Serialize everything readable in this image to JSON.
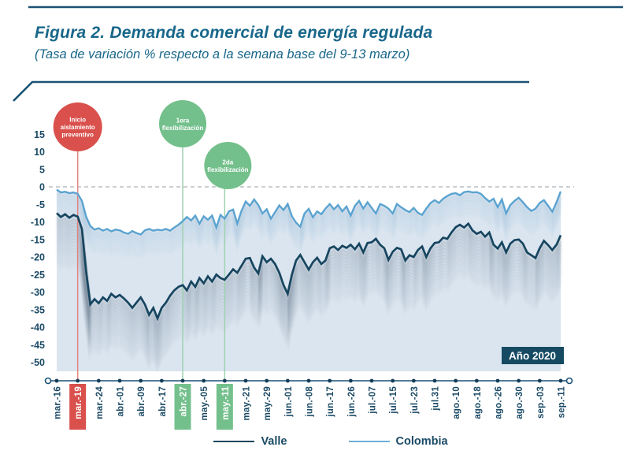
{
  "header": {
    "title": "Figura 2. Demanda comercial de energía regulada",
    "subtitle": "(Tasa de variación % respecto a la semana base del 9-13 marzo)"
  },
  "badge": {
    "label": "Año 2020"
  },
  "legend": [
    {
      "name": "Valle",
      "color": "#17455f"
    },
    {
      "name": "Colombia",
      "color": "#6fb0d8"
    }
  ],
  "annotations": [
    {
      "lines": [
        "Inicio",
        "aislamiento",
        "preventivo"
      ],
      "category": "mar.-19",
      "color": "#d9504c",
      "stem_color": "#e2847f"
    },
    {
      "lines": [
        "1era",
        "flexibilización"
      ],
      "category": "abr.-27",
      "color": "#74c08c",
      "stem_color": "#9ed2b0"
    },
    {
      "lines": [
        "2da",
        "flexibilización"
      ],
      "category": "may.-11",
      "color": "#74c08c",
      "stem_color": "#9ed2b0"
    }
  ],
  "colors": {
    "frame": "#1a5276",
    "title_text": "#19678a",
    "tick_text": "#1b4a66",
    "axis": "#1a5276",
    "dot": "#143d57",
    "zero_line": "#aab2b8",
    "red": "#d9504c",
    "green": "#74c08c",
    "valle": "#17455f",
    "colombia": "#5ba3d0",
    "area_fill": "#d7e3ef",
    "valle_shadow": "#54687a",
    "colombia_shadow": "#8fb6d4",
    "badge_bg": "#164a63",
    "badge_text": "#ffffff"
  },
  "chart_data": {
    "type": "line",
    "title": "Figura 2. Demanda comercial de energía regulada",
    "subtitle": "(Tasa de variación % respecto a la semana base del 9-13 marzo)",
    "xlabel": "",
    "ylabel": "Tasa de variación %",
    "ylim": [
      -50,
      15
    ],
    "grid": false,
    "zero_line_dashed": true,
    "legend_position": "bottom",
    "y_ticks": [
      15,
      10,
      5,
      0,
      -5,
      -10,
      -15,
      -20,
      -25,
      -30,
      -35,
      -40,
      -45,
      -50
    ],
    "x_tick_labels": [
      {
        "label": "mar.-16",
        "hl": ""
      },
      {
        "label": "mar.-19",
        "hl": "red"
      },
      {
        "label": "mar.-24",
        "hl": ""
      },
      {
        "label": "abr.-01",
        "hl": ""
      },
      {
        "label": "abr.-09",
        "hl": ""
      },
      {
        "label": "abr.-17",
        "hl": ""
      },
      {
        "label": "abr.-27",
        "hl": "green"
      },
      {
        "label": "may.-05",
        "hl": ""
      },
      {
        "label": "may.-11",
        "hl": "green"
      },
      {
        "label": "may.-21",
        "hl": ""
      },
      {
        "label": "may.-29",
        "hl": ""
      },
      {
        "label": "jun.-01",
        "hl": ""
      },
      {
        "label": "jun.-08",
        "hl": ""
      },
      {
        "label": "jun.-17",
        "hl": ""
      },
      {
        "label": "jun.-26",
        "hl": ""
      },
      {
        "label": "jul.-07",
        "hl": ""
      },
      {
        "label": "jul.-15",
        "hl": ""
      },
      {
        "label": "jul.-23",
        "hl": ""
      },
      {
        "label": "jul.31",
        "hl": ""
      },
      {
        "label": "ago.-10",
        "hl": ""
      },
      {
        "label": "ago.-18",
        "hl": ""
      },
      {
        "label": "ago.-26",
        "hl": ""
      },
      {
        "label": "ago.-30",
        "hl": ""
      },
      {
        "label": "sep.-03",
        "hl": ""
      },
      {
        "label": "sep.-11",
        "hl": ""
      }
    ],
    "series": [
      {
        "name": "Valle",
        "color": "#17455f",
        "values": [
          -7.5,
          -8.6,
          -7.8,
          -8.8,
          -8.0,
          -8.5,
          -12.0,
          -24.0,
          -33.5,
          -32.0,
          -33.2,
          -31.5,
          -32.5,
          -30.5,
          -31.5,
          -30.8,
          -31.8,
          -33.0,
          -34.5,
          -33.0,
          -31.5,
          -33.5,
          -36.5,
          -34.5,
          -37.5,
          -34.5,
          -33.0,
          -31.0,
          -29.5,
          -28.5,
          -28.0,
          -29.5,
          -27.0,
          -28.5,
          -26.0,
          -27.5,
          -25.5,
          -27.0,
          -25.0,
          -26.0,
          -26.5,
          -25.0,
          -23.5,
          -24.5,
          -22.5,
          -20.5,
          -20.3,
          -23.0,
          -24.7,
          -19.8,
          -21.5,
          -20.5,
          -22.0,
          -24.5,
          -28.0,
          -30.5,
          -25.0,
          -21.0,
          -19.4,
          -21.5,
          -23.6,
          -21.5,
          -20.2,
          -22.0,
          -21.0,
          -17.5,
          -17.0,
          -18.0,
          -16.8,
          -17.4,
          -16.5,
          -17.8,
          -16.2,
          -18.7,
          -16.0,
          -15.8,
          -14.8,
          -16.5,
          -17.5,
          -20.8,
          -18.5,
          -17.4,
          -17.8,
          -21.0,
          -19.5,
          -20.0,
          -18.0,
          -17.0,
          -20.0,
          -17.5,
          -16.0,
          -15.8,
          -14.5,
          -14.8,
          -13.0,
          -11.5,
          -10.8,
          -11.6,
          -10.5,
          -12.4,
          -13.4,
          -12.8,
          -14.2,
          -13.0,
          -16.5,
          -17.6,
          -15.8,
          -18.7,
          -16.2,
          -15.2,
          -15.0,
          -16.2,
          -18.7,
          -19.5,
          -20.3,
          -17.5,
          -15.4,
          -16.6,
          -18.0,
          -16.5,
          -13.8
        ]
      },
      {
        "name": "Colombia",
        "color": "#5ba3d0",
        "values": [
          -0.8,
          -1.6,
          -1.4,
          -1.8,
          -1.6,
          -2.0,
          -4.0,
          -8.5,
          -11.2,
          -12.2,
          -11.8,
          -12.5,
          -12.0,
          -12.7,
          -12.2,
          -12.4,
          -13.0,
          -13.4,
          -12.6,
          -13.2,
          -13.6,
          -12.4,
          -12.0,
          -12.5,
          -12.2,
          -12.4,
          -12.0,
          -12.5,
          -11.6,
          -10.8,
          -9.8,
          -8.6,
          -9.6,
          -8.2,
          -10.5,
          -8.4,
          -9.4,
          -8.2,
          -11.6,
          -8.0,
          -9.1,
          -7.0,
          -6.5,
          -10.5,
          -6.8,
          -4.2,
          -5.4,
          -3.6,
          -5.2,
          -7.6,
          -6.4,
          -9.1,
          -7.2,
          -5.3,
          -6.6,
          -4.9,
          -8.4,
          -10.2,
          -11.4,
          -7.6,
          -6.3,
          -8.7,
          -7.0,
          -7.8,
          -6.2,
          -4.9,
          -6.4,
          -5.2,
          -7.0,
          -5.6,
          -8.2,
          -5.4,
          -4.0,
          -6.2,
          -4.4,
          -6.0,
          -7.6,
          -4.9,
          -5.4,
          -6.2,
          -7.6,
          -4.9,
          -5.8,
          -6.6,
          -7.2,
          -6.0,
          -7.4,
          -8.0,
          -6.2,
          -4.6,
          -3.8,
          -4.6,
          -3.4,
          -2.6,
          -2.0,
          -1.8,
          -2.4,
          -1.5,
          -1.3,
          -1.6,
          -1.5,
          -2.0,
          -3.2,
          -4.2,
          -3.4,
          -5.8,
          -3.6,
          -7.6,
          -5.2,
          -4.0,
          -3.1,
          -4.4,
          -5.8,
          -6.9,
          -6.2,
          -4.6,
          -3.8,
          -5.4,
          -7.1,
          -4.4,
          -1.3
        ]
      }
    ]
  }
}
